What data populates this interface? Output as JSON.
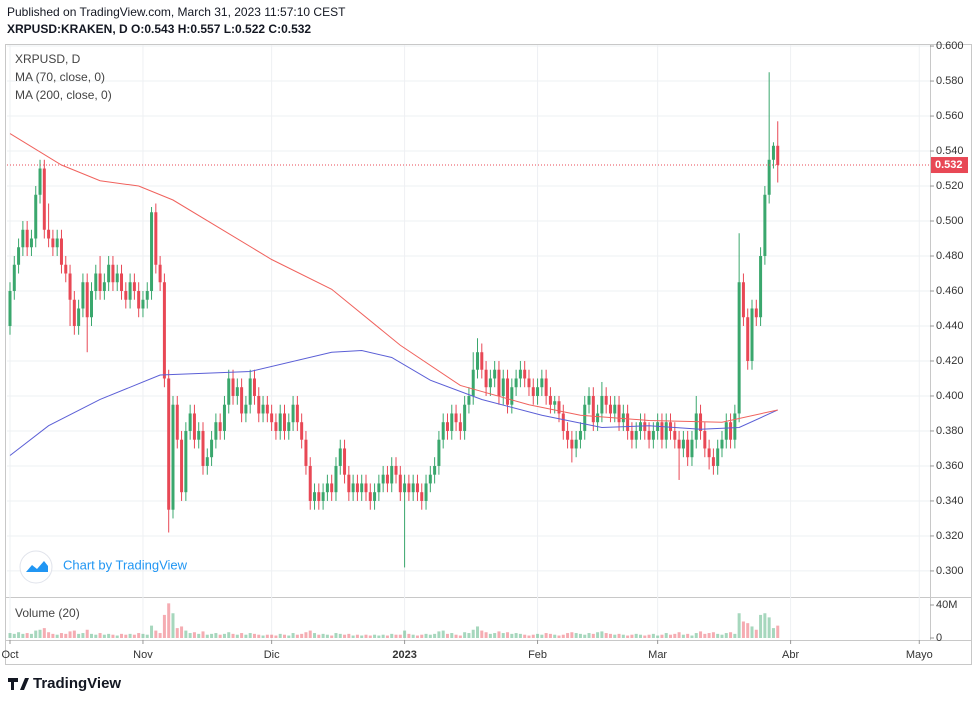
{
  "header": {
    "published": "Published on TradingView.com, March 31, 2023 11:57:10 CEST",
    "symbol_line": "XRPUSD:KRAKEN, D O:0.543 H:0.557 L:0.522 C:0.532"
  },
  "chart_data": {
    "type": "candlestick",
    "title": "XRPUSD, D",
    "colors": {
      "up": "#3aa76d",
      "down": "#e84855"
    },
    "xlim": [
      -0.7,
      214.5
    ],
    "xticks": [
      {
        "value": 0,
        "label": "Oct"
      },
      {
        "value": 31,
        "label": "Nov"
      },
      {
        "value": 61,
        "label": "Dic"
      },
      {
        "value": 92,
        "label": "2023"
      },
      {
        "value": 123,
        "label": "Feb"
      },
      {
        "value": 151,
        "label": "Mar"
      },
      {
        "value": 182,
        "label": "Abr"
      },
      {
        "value": 212,
        "label": "Mayo"
      }
    ],
    "ylim": [
      0.2851,
      0.6006
    ],
    "yticks": [
      {
        "value": 0.3,
        "label": "0.300"
      },
      {
        "value": 0.32,
        "label": "0.320"
      },
      {
        "value": 0.34,
        "label": "0.340"
      },
      {
        "value": 0.36,
        "label": "0.360"
      },
      {
        "value": 0.38,
        "label": "0.380"
      },
      {
        "value": 0.4,
        "label": "0.400"
      },
      {
        "value": 0.42,
        "label": "0.420"
      },
      {
        "value": 0.44,
        "label": "0.440"
      },
      {
        "value": 0.46,
        "label": "0.460"
      },
      {
        "value": 0.48,
        "label": "0.480"
      },
      {
        "value": 0.5,
        "label": "0.500"
      },
      {
        "value": 0.52,
        "label": "0.520"
      },
      {
        "value": 0.54,
        "label": "0.540"
      },
      {
        "value": 0.56,
        "label": "0.560"
      },
      {
        "value": 0.58,
        "label": "0.580"
      },
      {
        "value": 0.6,
        "label": "0.600"
      }
    ],
    "grid": true,
    "last_price": {
      "value": 0.532,
      "label": "0.532"
    },
    "ohlc": [
      [
        0.44,
        0.465,
        0.435,
        0.46
      ],
      [
        0.46,
        0.48,
        0.455,
        0.475
      ],
      [
        0.475,
        0.49,
        0.47,
        0.485
      ],
      [
        0.485,
        0.5,
        0.48,
        0.495
      ],
      [
        0.495,
        0.5,
        0.48,
        0.485
      ],
      [
        0.485,
        0.495,
        0.48,
        0.49
      ],
      [
        0.49,
        0.52,
        0.485,
        0.515
      ],
      [
        0.515,
        0.535,
        0.51,
        0.53
      ],
      [
        0.53,
        0.535,
        0.49,
        0.495
      ],
      [
        0.495,
        0.51,
        0.485,
        0.49
      ],
      [
        0.49,
        0.495,
        0.48,
        0.485
      ],
      [
        0.485,
        0.495,
        0.48,
        0.49
      ],
      [
        0.49,
        0.495,
        0.47,
        0.475
      ],
      [
        0.475,
        0.48,
        0.465,
        0.47
      ],
      [
        0.47,
        0.475,
        0.44,
        0.455
      ],
      [
        0.455,
        0.46,
        0.435,
        0.44
      ],
      [
        0.44,
        0.455,
        0.435,
        0.45
      ],
      [
        0.45,
        0.47,
        0.445,
        0.465
      ],
      [
        0.465,
        0.47,
        0.425,
        0.445
      ],
      [
        0.445,
        0.465,
        0.44,
        0.46
      ],
      [
        0.46,
        0.475,
        0.455,
        0.47
      ],
      [
        0.47,
        0.48,
        0.455,
        0.46
      ],
      [
        0.46,
        0.47,
        0.455,
        0.465
      ],
      [
        0.465,
        0.48,
        0.46,
        0.475
      ],
      [
        0.475,
        0.48,
        0.46,
        0.465
      ],
      [
        0.465,
        0.475,
        0.46,
        0.47
      ],
      [
        0.47,
        0.475,
        0.455,
        0.46
      ],
      [
        0.46,
        0.465,
        0.45,
        0.455
      ],
      [
        0.455,
        0.47,
        0.45,
        0.465
      ],
      [
        0.465,
        0.47,
        0.455,
        0.46
      ],
      [
        0.46,
        0.465,
        0.445,
        0.45
      ],
      [
        0.45,
        0.46,
        0.445,
        0.455
      ],
      [
        0.455,
        0.465,
        0.45,
        0.46
      ],
      [
        0.46,
        0.508,
        0.455,
        0.505
      ],
      [
        0.505,
        0.51,
        0.47,
        0.475
      ],
      [
        0.475,
        0.48,
        0.46,
        0.465
      ],
      [
        0.465,
        0.47,
        0.405,
        0.41
      ],
      [
        0.41,
        0.415,
        0.322,
        0.335
      ],
      [
        0.335,
        0.4,
        0.33,
        0.395
      ],
      [
        0.395,
        0.4,
        0.37,
        0.375
      ],
      [
        0.375,
        0.38,
        0.34,
        0.345
      ],
      [
        0.345,
        0.385,
        0.34,
        0.38
      ],
      [
        0.38,
        0.395,
        0.375,
        0.39
      ],
      [
        0.39,
        0.395,
        0.37,
        0.375
      ],
      [
        0.375,
        0.385,
        0.37,
        0.38
      ],
      [
        0.38,
        0.385,
        0.355,
        0.36
      ],
      [
        0.36,
        0.37,
        0.355,
        0.365
      ],
      [
        0.365,
        0.38,
        0.36,
        0.375
      ],
      [
        0.375,
        0.39,
        0.37,
        0.385
      ],
      [
        0.385,
        0.39,
        0.375,
        0.38
      ],
      [
        0.38,
        0.4,
        0.375,
        0.395
      ],
      [
        0.395,
        0.415,
        0.39,
        0.41
      ],
      [
        0.41,
        0.415,
        0.395,
        0.4
      ],
      [
        0.4,
        0.41,
        0.395,
        0.405
      ],
      [
        0.405,
        0.41,
        0.385,
        0.39
      ],
      [
        0.39,
        0.4,
        0.385,
        0.395
      ],
      [
        0.395,
        0.415,
        0.39,
        0.41
      ],
      [
        0.41,
        0.415,
        0.395,
        0.4
      ],
      [
        0.4,
        0.405,
        0.385,
        0.39
      ],
      [
        0.39,
        0.4,
        0.385,
        0.395
      ],
      [
        0.395,
        0.4,
        0.385,
        0.39
      ],
      [
        0.39,
        0.395,
        0.38,
        0.385
      ],
      [
        0.385,
        0.39,
        0.375,
        0.38
      ],
      [
        0.38,
        0.395,
        0.375,
        0.39
      ],
      [
        0.39,
        0.395,
        0.375,
        0.38
      ],
      [
        0.38,
        0.39,
        0.375,
        0.385
      ],
      [
        0.385,
        0.4,
        0.38,
        0.395
      ],
      [
        0.395,
        0.4,
        0.38,
        0.385
      ],
      [
        0.385,
        0.39,
        0.37,
        0.375
      ],
      [
        0.375,
        0.38,
        0.355,
        0.36
      ],
      [
        0.36,
        0.365,
        0.335,
        0.34
      ],
      [
        0.34,
        0.35,
        0.335,
        0.345
      ],
      [
        0.345,
        0.35,
        0.335,
        0.34
      ],
      [
        0.34,
        0.35,
        0.335,
        0.345
      ],
      [
        0.345,
        0.355,
        0.34,
        0.35
      ],
      [
        0.35,
        0.355,
        0.34,
        0.345
      ],
      [
        0.345,
        0.365,
        0.34,
        0.36
      ],
      [
        0.36,
        0.375,
        0.355,
        0.37
      ],
      [
        0.37,
        0.375,
        0.35,
        0.355
      ],
      [
        0.355,
        0.36,
        0.34,
        0.345
      ],
      [
        0.345,
        0.355,
        0.34,
        0.35
      ],
      [
        0.35,
        0.355,
        0.34,
        0.345
      ],
      [
        0.345,
        0.355,
        0.34,
        0.35
      ],
      [
        0.35,
        0.355,
        0.34,
        0.345
      ],
      [
        0.345,
        0.35,
        0.335,
        0.34
      ],
      [
        0.34,
        0.35,
        0.335,
        0.345
      ],
      [
        0.345,
        0.355,
        0.34,
        0.35
      ],
      [
        0.35,
        0.36,
        0.345,
        0.355
      ],
      [
        0.355,
        0.36,
        0.345,
        0.35
      ],
      [
        0.35,
        0.365,
        0.345,
        0.36
      ],
      [
        0.36,
        0.365,
        0.35,
        0.355
      ],
      [
        0.355,
        0.36,
        0.34,
        0.345
      ],
      [
        0.345,
        0.355,
        0.302,
        0.35
      ],
      [
        0.35,
        0.355,
        0.34,
        0.345
      ],
      [
        0.345,
        0.355,
        0.34,
        0.35
      ],
      [
        0.35,
        0.355,
        0.34,
        0.345
      ],
      [
        0.345,
        0.35,
        0.335,
        0.34
      ],
      [
        0.34,
        0.355,
        0.335,
        0.35
      ],
      [
        0.35,
        0.36,
        0.345,
        0.355
      ],
      [
        0.355,
        0.365,
        0.35,
        0.36
      ],
      [
        0.36,
        0.38,
        0.355,
        0.375
      ],
      [
        0.375,
        0.39,
        0.37,
        0.385
      ],
      [
        0.385,
        0.39,
        0.375,
        0.38
      ],
      [
        0.38,
        0.395,
        0.375,
        0.39
      ],
      [
        0.39,
        0.395,
        0.38,
        0.385
      ],
      [
        0.385,
        0.39,
        0.375,
        0.38
      ],
      [
        0.38,
        0.4,
        0.375,
        0.395
      ],
      [
        0.395,
        0.405,
        0.39,
        0.4
      ],
      [
        0.4,
        0.425,
        0.395,
        0.415
      ],
      [
        0.415,
        0.433,
        0.41,
        0.425
      ],
      [
        0.425,
        0.43,
        0.41,
        0.415
      ],
      [
        0.415,
        0.42,
        0.4,
        0.405
      ],
      [
        0.405,
        0.415,
        0.4,
        0.41
      ],
      [
        0.41,
        0.42,
        0.405,
        0.415
      ],
      [
        0.415,
        0.42,
        0.395,
        0.4
      ],
      [
        0.4,
        0.415,
        0.395,
        0.41
      ],
      [
        0.41,
        0.415,
        0.39,
        0.395
      ],
      [
        0.395,
        0.41,
        0.39,
        0.405
      ],
      [
        0.405,
        0.415,
        0.4,
        0.41
      ],
      [
        0.41,
        0.42,
        0.405,
        0.415
      ],
      [
        0.415,
        0.42,
        0.405,
        0.41
      ],
      [
        0.41,
        0.415,
        0.4,
        0.405
      ],
      [
        0.405,
        0.41,
        0.395,
        0.4
      ],
      [
        0.4,
        0.41,
        0.395,
        0.405
      ],
      [
        0.405,
        0.415,
        0.4,
        0.41
      ],
      [
        0.41,
        0.415,
        0.395,
        0.4
      ],
      [
        0.4,
        0.405,
        0.39,
        0.395
      ],
      [
        0.395,
        0.4,
        0.39,
        0.397
      ],
      [
        0.397,
        0.4,
        0.385,
        0.39
      ],
      [
        0.39,
        0.395,
        0.375,
        0.38
      ],
      [
        0.38,
        0.385,
        0.37,
        0.375
      ],
      [
        0.375,
        0.38,
        0.362,
        0.37
      ],
      [
        0.37,
        0.38,
        0.365,
        0.375
      ],
      [
        0.375,
        0.385,
        0.37,
        0.38
      ],
      [
        0.38,
        0.4,
        0.375,
        0.395
      ],
      [
        0.395,
        0.405,
        0.39,
        0.4
      ],
      [
        0.4,
        0.405,
        0.38,
        0.385
      ],
      [
        0.385,
        0.395,
        0.38,
        0.39
      ],
      [
        0.39,
        0.408,
        0.385,
        0.4
      ],
      [
        0.4,
        0.405,
        0.39,
        0.395
      ],
      [
        0.395,
        0.4,
        0.385,
        0.39
      ],
      [
        0.39,
        0.4,
        0.385,
        0.395
      ],
      [
        0.395,
        0.4,
        0.38,
        0.385
      ],
      [
        0.385,
        0.395,
        0.38,
        0.39
      ],
      [
        0.39,
        0.395,
        0.375,
        0.38
      ],
      [
        0.38,
        0.385,
        0.37,
        0.375
      ],
      [
        0.375,
        0.385,
        0.37,
        0.38
      ],
      [
        0.38,
        0.39,
        0.375,
        0.385
      ],
      [
        0.385,
        0.39,
        0.375,
        0.38
      ],
      [
        0.38,
        0.385,
        0.37,
        0.375
      ],
      [
        0.375,
        0.385,
        0.37,
        0.38
      ],
      [
        0.38,
        0.39,
        0.375,
        0.385
      ],
      [
        0.385,
        0.39,
        0.37,
        0.375
      ],
      [
        0.375,
        0.39,
        0.37,
        0.385
      ],
      [
        0.385,
        0.39,
        0.375,
        0.38
      ],
      [
        0.38,
        0.385,
        0.37,
        0.375
      ],
      [
        0.375,
        0.38,
        0.352,
        0.37
      ],
      [
        0.37,
        0.38,
        0.365,
        0.375
      ],
      [
        0.375,
        0.38,
        0.36,
        0.365
      ],
      [
        0.365,
        0.38,
        0.36,
        0.375
      ],
      [
        0.375,
        0.4,
        0.37,
        0.39
      ],
      [
        0.39,
        0.395,
        0.375,
        0.38
      ],
      [
        0.38,
        0.385,
        0.365,
        0.37
      ],
      [
        0.37,
        0.375,
        0.358,
        0.365
      ],
      [
        0.365,
        0.37,
        0.355,
        0.36
      ],
      [
        0.36,
        0.375,
        0.355,
        0.37
      ],
      [
        0.37,
        0.38,
        0.365,
        0.375
      ],
      [
        0.375,
        0.39,
        0.37,
        0.385
      ],
      [
        0.385,
        0.39,
        0.37,
        0.375
      ],
      [
        0.375,
        0.395,
        0.37,
        0.39
      ],
      [
        0.39,
        0.493,
        0.385,
        0.465
      ],
      [
        0.465,
        0.47,
        0.44,
        0.445
      ],
      [
        0.445,
        0.45,
        0.415,
        0.42
      ],
      [
        0.42,
        0.455,
        0.415,
        0.45
      ],
      [
        0.45,
        0.455,
        0.44,
        0.445
      ],
      [
        0.445,
        0.485,
        0.44,
        0.48
      ],
      [
        0.48,
        0.52,
        0.475,
        0.515
      ],
      [
        0.515,
        0.585,
        0.51,
        0.535
      ],
      [
        0.535,
        0.545,
        0.53,
        0.543
      ],
      [
        0.543,
        0.557,
        0.522,
        0.532
      ]
    ],
    "series": [
      {
        "name": "MA (70, close, 0)",
        "color": "#5b5fd6",
        "x": [
          0,
          9,
          21,
          35,
          56,
          75,
          82,
          89,
          98,
          110,
          124,
          138,
          149,
          161,
          170,
          179
        ],
        "values": [
          0.366,
          0.383,
          0.398,
          0.412,
          0.414,
          0.425,
          0.426,
          0.422,
          0.409,
          0.398,
          0.389,
          0.382,
          0.383,
          0.381,
          0.382,
          0.392
        ]
      },
      {
        "name": "MA (200, close, 0)",
        "color": "#f0625d",
        "x": [
          0,
          12,
          21,
          30,
          38,
          61,
          75,
          91,
          105,
          121,
          133,
          149,
          166,
          179
        ],
        "values": [
          0.55,
          0.532,
          0.523,
          0.52,
          0.512,
          0.478,
          0.461,
          0.429,
          0.406,
          0.395,
          0.389,
          0.386,
          0.385,
          0.392
        ]
      }
    ],
    "volume": {
      "title": "Volume (20)",
      "ylim": [
        0,
        49.7
      ],
      "yticks": [
        {
          "value": 40,
          "label": "40M"
        },
        0
      ],
      "values": [
        6,
        5,
        7,
        5,
        6,
        5,
        9,
        10,
        12,
        7,
        5,
        4,
        6,
        5,
        8,
        9,
        5,
        6,
        10,
        5,
        4,
        6,
        4,
        5,
        4,
        3,
        5,
        4,
        5,
        4,
        6,
        5,
        4,
        15,
        9,
        6,
        28,
        42,
        30,
        12,
        14,
        9,
        6,
        7,
        5,
        8,
        4,
        5,
        6,
        4,
        5,
        7,
        5,
        4,
        6,
        4,
        6,
        5,
        4,
        3,
        4,
        4,
        3,
        5,
        4,
        3,
        6,
        4,
        5,
        7,
        9,
        6,
        4,
        5,
        4,
        3,
        6,
        5,
        4,
        5,
        3,
        4,
        3,
        4,
        3,
        4,
        3,
        4,
        3,
        5,
        4,
        4,
        9,
        5,
        4,
        3,
        4,
        5,
        4,
        5,
        8,
        9,
        5,
        6,
        4,
        3,
        7,
        6,
        10,
        14,
        9,
        7,
        5,
        6,
        8,
        6,
        7,
        5,
        6,
        5,
        4,
        3,
        4,
        5,
        4,
        6,
        5,
        4,
        3,
        4,
        6,
        7,
        6,
        5,
        4,
        6,
        5,
        7,
        8,
        6,
        5,
        4,
        5,
        4,
        3,
        4,
        5,
        4,
        3,
        4,
        5,
        3,
        4,
        6,
        4,
        5,
        7,
        4,
        5,
        3,
        6,
        8,
        5,
        6,
        7,
        5,
        4,
        6,
        7,
        5,
        30,
        20,
        18,
        14,
        10,
        28,
        30,
        25,
        12,
        15
      ]
    }
  },
  "watermark": "Chart by TradingView",
  "footer": "TradingView"
}
